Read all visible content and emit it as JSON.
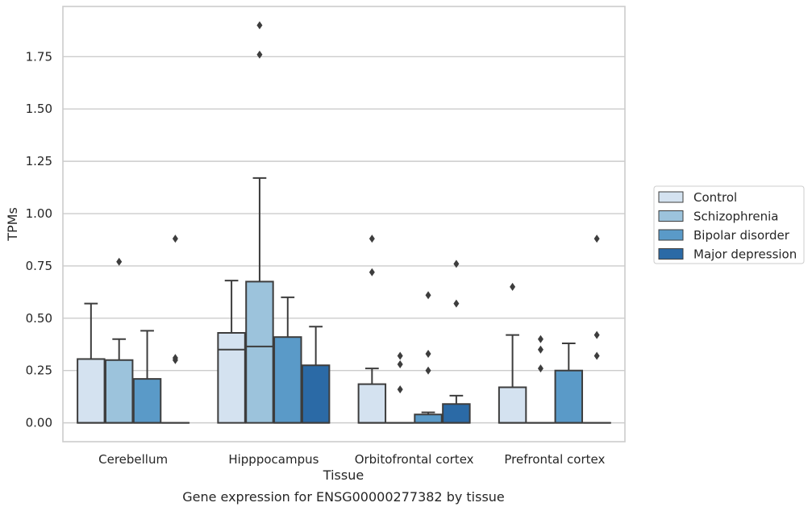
{
  "chart_data": {
    "type": "box",
    "caption": "Gene expression for ENSG00000277382 by tissue",
    "xlabel": "Tissue",
    "ylabel": "TPMs",
    "ylim": [
      -0.09,
      1.99
    ],
    "yticks": [
      0.0,
      0.25,
      0.5,
      0.75,
      1.0,
      1.25,
      1.5,
      1.75
    ],
    "ytick_labels": [
      "0.00",
      "0.25",
      "0.50",
      "0.75",
      "1.00",
      "1.25",
      "1.50",
      "1.75"
    ],
    "grid": "horizontal",
    "legend_position": "right",
    "categories": [
      "Cerebellum",
      "Hipppocampus",
      "Orbitofrontal cortex",
      "Prefrontal cortex"
    ],
    "series": [
      {
        "name": "Control",
        "color": "#d4e2f0",
        "boxes": [
          {
            "category": "Cerebellum",
            "q1": 0.0,
            "median": 0.0,
            "q3": 0.305,
            "whisker_low": 0.0,
            "whisker_high": 0.57,
            "outliers": []
          },
          {
            "category": "Hipppocampus",
            "q1": 0.0,
            "median": 0.35,
            "q3": 0.43,
            "whisker_low": 0.0,
            "whisker_high": 0.68,
            "outliers": []
          },
          {
            "category": "Orbitofrontal cortex",
            "q1": 0.0,
            "median": 0.0,
            "q3": 0.185,
            "whisker_low": 0.0,
            "whisker_high": 0.26,
            "outliers": [
              0.72,
              0.88
            ]
          },
          {
            "category": "Prefrontal cortex",
            "q1": 0.0,
            "median": 0.0,
            "q3": 0.17,
            "whisker_low": 0.0,
            "whisker_high": 0.42,
            "outliers": [
              0.65
            ]
          }
        ]
      },
      {
        "name": "Schizophrenia",
        "color": "#9cc3dc",
        "boxes": [
          {
            "category": "Cerebellum",
            "q1": 0.0,
            "median": 0.0,
            "q3": 0.3,
            "whisker_low": 0.0,
            "whisker_high": 0.4,
            "outliers": [
              0.77
            ]
          },
          {
            "category": "Hipppocampus",
            "q1": 0.0,
            "median": 0.365,
            "q3": 0.675,
            "whisker_low": 0.0,
            "whisker_high": 1.17,
            "outliers": [
              1.76,
              1.9
            ]
          },
          {
            "category": "Orbitofrontal cortex",
            "q1": 0.0,
            "median": 0.0,
            "q3": 0.0,
            "whisker_low": 0.0,
            "whisker_high": 0.0,
            "outliers": [
              0.16,
              0.28,
              0.32
            ]
          },
          {
            "category": "Prefrontal cortex",
            "q1": 0.0,
            "median": 0.0,
            "q3": 0.0,
            "whisker_low": 0.0,
            "whisker_high": 0.0,
            "outliers": [
              0.26,
              0.35,
              0.4
            ]
          }
        ]
      },
      {
        "name": "Bipolar disorder",
        "color": "#5a9ac8",
        "boxes": [
          {
            "category": "Cerebellum",
            "q1": 0.0,
            "median": 0.0,
            "q3": 0.21,
            "whisker_low": 0.0,
            "whisker_high": 0.44,
            "outliers": []
          },
          {
            "category": "Hipppocampus",
            "q1": 0.0,
            "median": 0.0,
            "q3": 0.41,
            "whisker_low": 0.0,
            "whisker_high": 0.6,
            "outliers": []
          },
          {
            "category": "Orbitofrontal cortex",
            "q1": 0.0,
            "median": 0.0,
            "q3": 0.04,
            "whisker_low": 0.0,
            "whisker_high": 0.05,
            "outliers": [
              0.25,
              0.33,
              0.61
            ]
          },
          {
            "category": "Prefrontal cortex",
            "q1": 0.0,
            "median": 0.0,
            "q3": 0.25,
            "whisker_low": 0.0,
            "whisker_high": 0.38,
            "outliers": []
          }
        ]
      },
      {
        "name": "Major depression",
        "color": "#2b6aa6",
        "boxes": [
          {
            "category": "Cerebellum",
            "q1": 0.0,
            "median": 0.0,
            "q3": 0.0,
            "whisker_low": 0.0,
            "whisker_high": 0.0,
            "outliers": [
              0.3,
              0.31,
              0.88
            ]
          },
          {
            "category": "Hipppocampus",
            "q1": 0.0,
            "median": 0.0,
            "q3": 0.275,
            "whisker_low": 0.0,
            "whisker_high": 0.46,
            "outliers": []
          },
          {
            "category": "Orbitofrontal cortex",
            "q1": 0.0,
            "median": 0.0,
            "q3": 0.09,
            "whisker_low": 0.0,
            "whisker_high": 0.13,
            "outliers": [
              0.57,
              0.76
            ]
          },
          {
            "category": "Prefrontal cortex",
            "q1": 0.0,
            "median": 0.0,
            "q3": 0.0,
            "whisker_low": 0.0,
            "whisker_high": 0.0,
            "outliers": [
              0.32,
              0.42,
              0.88
            ]
          }
        ]
      }
    ]
  }
}
